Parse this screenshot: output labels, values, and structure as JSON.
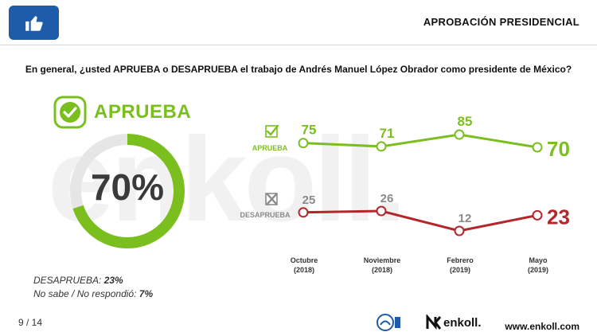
{
  "header": {
    "title": "APROBACIÓN PRESIDENCIAL",
    "icon": "thumbs-up-icon",
    "accent": "#1e5ba8"
  },
  "question": "En general, ¿usted APRUEBA o DESAPRUEBA el trabajo de Andrés Manuel López Obrador como presidente de México?",
  "watermark": "enkoll.",
  "approve": {
    "title": "APRUEBA",
    "value_label": "70%",
    "value": 70,
    "color": "#7bbf1f"
  },
  "stats": {
    "disapprove_label": "DESAPRUEBA:",
    "disapprove_value": "23%",
    "unknown_label": "No sabe / No respondió:",
    "unknown_value": "7%"
  },
  "chart_data": {
    "type": "line",
    "categories": [
      "Octubre (2018)",
      "Noviembre (2018)",
      "Febrero (2019)",
      "Mayo (2019)"
    ],
    "category_lines": [
      [
        "Octubre",
        "(2018)"
      ],
      [
        "Noviembre",
        "(2018)"
      ],
      [
        "Febrero",
        "(2019)"
      ],
      [
        "Mayo",
        "(2019)"
      ]
    ],
    "series": [
      {
        "name": "APRUEBA",
        "values": [
          75,
          71,
          85,
          70
        ],
        "labels": [
          "75",
          "71",
          "85",
          "70"
        ],
        "color": "#7bbf1f"
      },
      {
        "name": "DESAPRUEBA",
        "values": [
          25,
          26,
          12,
          23
        ],
        "labels": [
          "25",
          "26",
          "12",
          "23"
        ],
        "color": "#b5262b"
      }
    ],
    "ylim": [
      0,
      100
    ],
    "grid": false
  },
  "footer": {
    "page": "9 / 14",
    "brand": "enkoll.",
    "website": "www.enkoll.com"
  }
}
